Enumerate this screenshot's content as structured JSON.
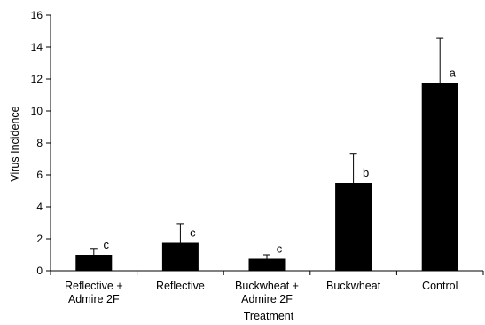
{
  "chart_data": {
    "type": "bar",
    "title": "",
    "xlabel": "Treatment",
    "ylabel": "Virus Incidence",
    "ylim": [
      0,
      16
    ],
    "yticks": [
      0,
      2,
      4,
      6,
      8,
      10,
      12,
      14,
      16
    ],
    "categories": [
      [
        "Reflective +",
        "Admire 2F"
      ],
      [
        "Reflective"
      ],
      [
        "Buckwheat +",
        "Admire 2F"
      ],
      [
        "Buckwheat"
      ],
      [
        "Control"
      ]
    ],
    "values": [
      1.0,
      1.75,
      0.75,
      5.5,
      11.75
    ],
    "error_upper": [
      1.4,
      2.95,
      1.0,
      7.35,
      14.55
    ],
    "significance_letters": [
      "c",
      "c",
      "c",
      "b",
      "a"
    ],
    "bar_color": "#000000",
    "grid": false,
    "legend": "none"
  }
}
